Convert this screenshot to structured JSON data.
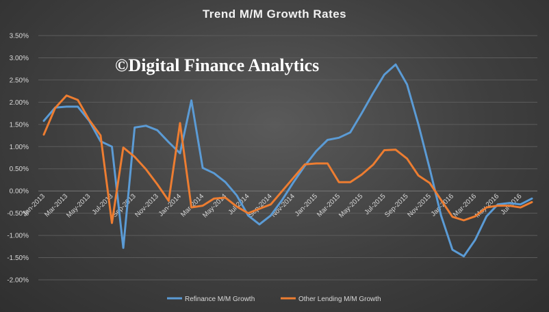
{
  "chart_data": {
    "type": "line",
    "title": "Trend M/M Growth Rates",
    "watermark": "©Digital Finance Analytics",
    "ylim": [
      -2.0,
      3.5
    ],
    "yticks": [
      -2.0,
      -1.5,
      -1.0,
      -0.5,
      0.0,
      0.5,
      1.0,
      1.5,
      2.0,
      2.5,
      3.0,
      3.5
    ],
    "ytick_labels": [
      "-2.00%",
      "-1.50%",
      "-1.00%",
      "-0.50%",
      "0.00%",
      "0.50%",
      "1.00%",
      "1.50%",
      "2.00%",
      "2.50%",
      "3.00%",
      "3.50%"
    ],
    "x_labels": [
      "Jan-2013",
      "Mar-2013",
      "May-2013",
      "Jul-2013",
      "Sep-2013",
      "Nov-2013",
      "Jan-2014",
      "Mar-2014",
      "May-2014",
      "Jul-2014",
      "Sep-2014",
      "Nov-2014",
      "Jan-2015",
      "Mar-2015",
      "May-2015",
      "Jul-2015",
      "Sep-2015",
      "Nov-2015",
      "Jan-2016",
      "Mar-2016",
      "May-2016",
      "Jul-2016"
    ],
    "x": [
      "Jan-2013",
      "Feb-2013",
      "Mar-2013",
      "Apr-2013",
      "May-2013",
      "Jun-2013",
      "Jul-2013",
      "Aug-2013",
      "Sep-2013",
      "Oct-2013",
      "Nov-2013",
      "Dec-2013",
      "Jan-2014",
      "Feb-2014",
      "Mar-2014",
      "Apr-2014",
      "May-2014",
      "Jun-2014",
      "Jul-2014",
      "Aug-2014",
      "Sep-2014",
      "Oct-2014",
      "Nov-2014",
      "Dec-2014",
      "Jan-2015",
      "Feb-2015",
      "Mar-2015",
      "Apr-2015",
      "May-2015",
      "Jun-2015",
      "Jul-2015",
      "Aug-2015",
      "Sep-2015",
      "Oct-2015",
      "Nov-2015",
      "Dec-2015",
      "Jan-2016",
      "Feb-2016",
      "Mar-2016",
      "Apr-2016",
      "May-2016",
      "Jun-2016",
      "Jul-2016",
      "Aug-2016"
    ],
    "series": [
      {
        "name": "Refinance M/M Growth",
        "color": "#5b9bd5",
        "values": [
          1.58,
          1.88,
          1.9,
          1.9,
          1.58,
          1.12,
          1.0,
          -1.28,
          1.43,
          1.47,
          1.37,
          1.1,
          0.85,
          2.04,
          0.52,
          0.4,
          0.2,
          -0.1,
          -0.55,
          -0.75,
          -0.55,
          -0.2,
          0.2,
          0.57,
          0.9,
          1.15,
          1.2,
          1.32,
          1.75,
          2.2,
          2.62,
          2.85,
          2.4,
          1.5,
          0.5,
          -0.55,
          -1.32,
          -1.47,
          -1.1,
          -0.57,
          -0.3,
          -0.27,
          -0.3,
          -0.17
        ]
      },
      {
        "name": "Other Lending M/M Growth",
        "color": "#ed7d31",
        "values": [
          1.27,
          1.87,
          2.15,
          2.05,
          1.6,
          1.25,
          -0.72,
          0.98,
          0.77,
          0.49,
          0.15,
          -0.22,
          1.53,
          -0.37,
          -0.33,
          -0.17,
          -0.15,
          -0.35,
          -0.5,
          -0.4,
          -0.3,
          0.0,
          0.3,
          0.6,
          0.62,
          0.62,
          0.2,
          0.2,
          0.37,
          0.59,
          0.92,
          0.93,
          0.73,
          0.35,
          0.18,
          -0.2,
          -0.58,
          -0.66,
          -0.57,
          -0.37,
          -0.33,
          -0.33,
          -0.37,
          -0.25
        ]
      }
    ],
    "grid": true,
    "legend_position": "bottom"
  }
}
